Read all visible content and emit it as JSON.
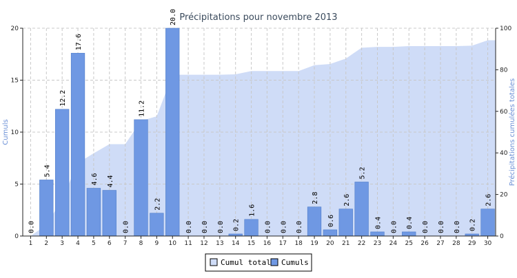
{
  "chart_data": {
    "type": "bar",
    "title": "Précipitations pour novembre 2013",
    "xlabel": "",
    "ylabel": "Cumuls",
    "y2label": "Précipitations cumulées totales",
    "categories": [
      "1",
      "2",
      "3",
      "4",
      "5",
      "6",
      "7",
      "8",
      "9",
      "10",
      "11",
      "12",
      "13",
      "14",
      "15",
      "16",
      "17",
      "18",
      "19",
      "20",
      "21",
      "22",
      "23",
      "24",
      "25",
      "26",
      "27",
      "28",
      "29",
      "30"
    ],
    "ylim": [
      0,
      20
    ],
    "yticks": [
      0,
      5,
      10,
      15,
      20
    ],
    "y2lim": [
      0,
      100
    ],
    "y2ticks": [
      0,
      20,
      40,
      60,
      80,
      100
    ],
    "grid": true,
    "legend_position": "bottom-center",
    "series": [
      {
        "name": "Cumuls",
        "type": "bar",
        "axis": "left",
        "color": "#6f98e3",
        "values": [
          0.0,
          5.4,
          12.2,
          17.6,
          4.6,
          4.4,
          0.0,
          11.2,
          2.2,
          20.0,
          0.0,
          0.0,
          0.0,
          0.2,
          1.6,
          0.0,
          0.0,
          0.0,
          2.8,
          0.6,
          2.6,
          5.2,
          0.4,
          0.0,
          0.4,
          0.0,
          0.0,
          0.0,
          0.2,
          2.6
        ]
      },
      {
        "name": "Cumul total",
        "type": "area",
        "axis": "right",
        "color": "#cfdcf7",
        "values": [
          0.0,
          5.4,
          17.6,
          35.2,
          39.8,
          44.2,
          44.2,
          55.4,
          57.6,
          77.6,
          77.6,
          77.6,
          77.6,
          77.8,
          79.4,
          79.4,
          79.4,
          79.4,
          82.2,
          82.8,
          85.4,
          90.6,
          91.0,
          91.0,
          91.4,
          91.4,
          91.4,
          91.4,
          91.6,
          94.2
        ]
      }
    ]
  }
}
